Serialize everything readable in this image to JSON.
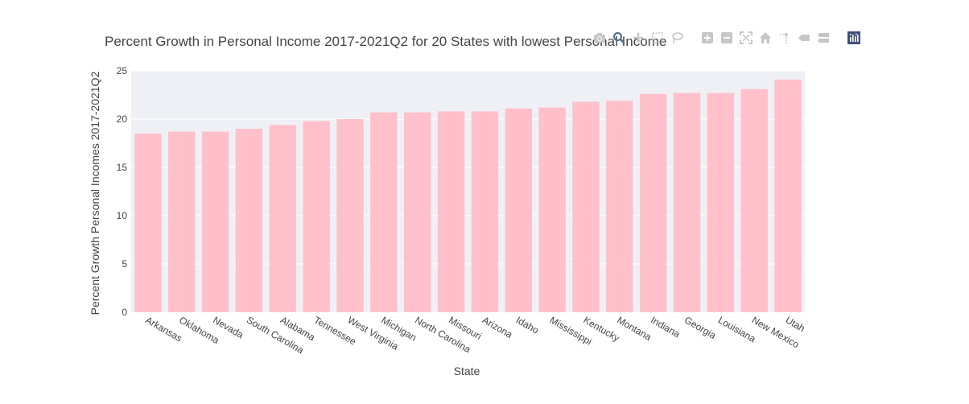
{
  "chart_data": {
    "type": "bar",
    "title": "Percent Growth in Personal Income 2017-2021Q2 for 20 States with lowest Personal Income",
    "xlabel": "State",
    "ylabel": "Percent Growth Personal Incomes 2017-2021Q2",
    "ylim": [
      0,
      25
    ],
    "yticks": [
      0,
      5,
      10,
      15,
      20,
      25
    ],
    "grid": true,
    "bar_color": "#ffc0cb",
    "plot_bg": "#eff0f5",
    "categories": [
      "Arkansas",
      "Oklahoma",
      "Nevada",
      "South Carolina",
      "Alabama",
      "Tennessee",
      "West Virginia",
      "Michigan",
      "North Carolina",
      "Missouri",
      "Arizona",
      "Idaho",
      "Mississippi",
      "Kentucky",
      "Montana",
      "Indiana",
      "Georgia",
      "Louisiana",
      "New Mexico",
      "Utah"
    ],
    "values": [
      18.5,
      18.7,
      18.7,
      19.0,
      19.4,
      19.8,
      20.0,
      20.7,
      20.7,
      20.8,
      20.8,
      21.1,
      21.2,
      21.8,
      21.9,
      22.6,
      22.7,
      22.7,
      23.1,
      24.1
    ]
  },
  "modebar": {
    "icons": [
      "camera-icon",
      "zoom-icon",
      "pan-icon",
      "box-select-icon",
      "lasso-icon",
      "zoom-in-icon",
      "zoom-out-icon",
      "autoscale-icon",
      "home-icon",
      "spike-lines-icon",
      "hover-closest-icon",
      "hover-compare-icon",
      "plotly-logo-icon"
    ],
    "active": "zoom-icon"
  }
}
